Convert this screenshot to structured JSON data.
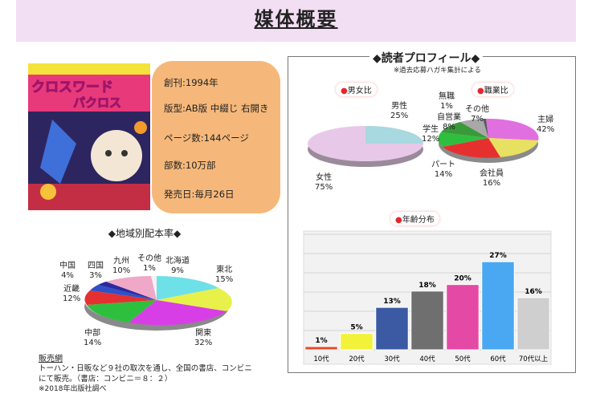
{
  "page": {
    "title": "媒体概要"
  },
  "cover": {
    "title_line1": "クロスワード",
    "title_line2": "パクロス"
  },
  "info": {
    "launch": "創刊:1994年",
    "format": "版型:AB版 中綴じ 右開き",
    "pages": "ページ数:144ページ",
    "circulation": "部数:10万部",
    "release": "発売日:毎月26日"
  },
  "profile": {
    "title": "◆読者プロフィール◆",
    "note": "※過去応募ハガキ集計による"
  },
  "regional": {
    "title": "◆地域別配本率◆",
    "labels": [
      {
        "name": "中国",
        "value": "4%"
      },
      {
        "name": "四国",
        "value": "3%"
      },
      {
        "name": "九州",
        "value": "10%"
      },
      {
        "name": "その他",
        "value": "1%"
      },
      {
        "name": "北海道",
        "value": "9%"
      },
      {
        "name": "東北",
        "value": "15%"
      },
      {
        "name": "関東",
        "value": "32%"
      },
      {
        "name": "中部",
        "value": "14%"
      },
      {
        "name": "近畿",
        "value": "12%"
      }
    ]
  },
  "sales": {
    "heading": "販売網",
    "line1": "トーハン・日販など９社の取次を通し、全国の書店、コンビニ",
    "line2": "にて販売。（書店：コンビニ＝８：２）",
    "line3": "※2018年出版社調べ"
  },
  "gender": {
    "title": "男女比",
    "labels": [
      {
        "name": "男性",
        "value": "25%"
      },
      {
        "name": "女性",
        "value": "75%"
      }
    ]
  },
  "occupation": {
    "title": "職業比",
    "labels": [
      {
        "name": "無職",
        "value": "1%"
      },
      {
        "name": "その他",
        "value": "7%"
      },
      {
        "name": "自営業",
        "value": "8%"
      },
      {
        "name": "学生",
        "value": "12%"
      },
      {
        "name": "主婦",
        "value": "42%"
      },
      {
        "name": "パート",
        "value": "14%"
      },
      {
        "name": "会社員",
        "value": "16%"
      }
    ]
  },
  "chart_data": {
    "type": "bar",
    "title": "年齢分布",
    "categories": [
      "10代",
      "20代",
      "30代",
      "40代",
      "50代",
      "60代",
      "70代以上"
    ],
    "values": [
      1,
      5,
      13,
      18,
      20,
      27,
      16
    ],
    "value_labels": [
      "1%",
      "5%",
      "13%",
      "18%",
      "20%",
      "27%",
      "16%"
    ],
    "colors": [
      "#e84a2a",
      "#f2f23a",
      "#3b5aa3",
      "#6f6f6f",
      "#e44aa5",
      "#4aa8f2",
      "#cfcfcf"
    ],
    "ylim": [
      0,
      30
    ],
    "grid": true
  }
}
